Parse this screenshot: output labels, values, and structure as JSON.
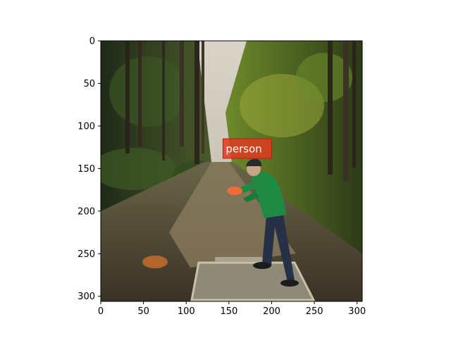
{
  "axes": {
    "x_range": [
      0,
      306
    ],
    "y_range": [
      0,
      306
    ],
    "y_inverted": true,
    "x_ticks": [
      "0",
      "50",
      "100",
      "150",
      "200",
      "250",
      "300"
    ],
    "y_ticks": [
      "0",
      "50",
      "100",
      "150",
      "200",
      "250",
      "300"
    ]
  },
  "detections": [
    {
      "label": "person",
      "color": "#e03a1e",
      "box_data": {
        "x0": 143,
        "y0": 115,
        "x1": 200,
        "y1": 138
      }
    }
  ],
  "scene": {
    "description_icons": [
      "forest-photo",
      "disc-golf-player",
      "frisbee",
      "tee-pad"
    ]
  }
}
